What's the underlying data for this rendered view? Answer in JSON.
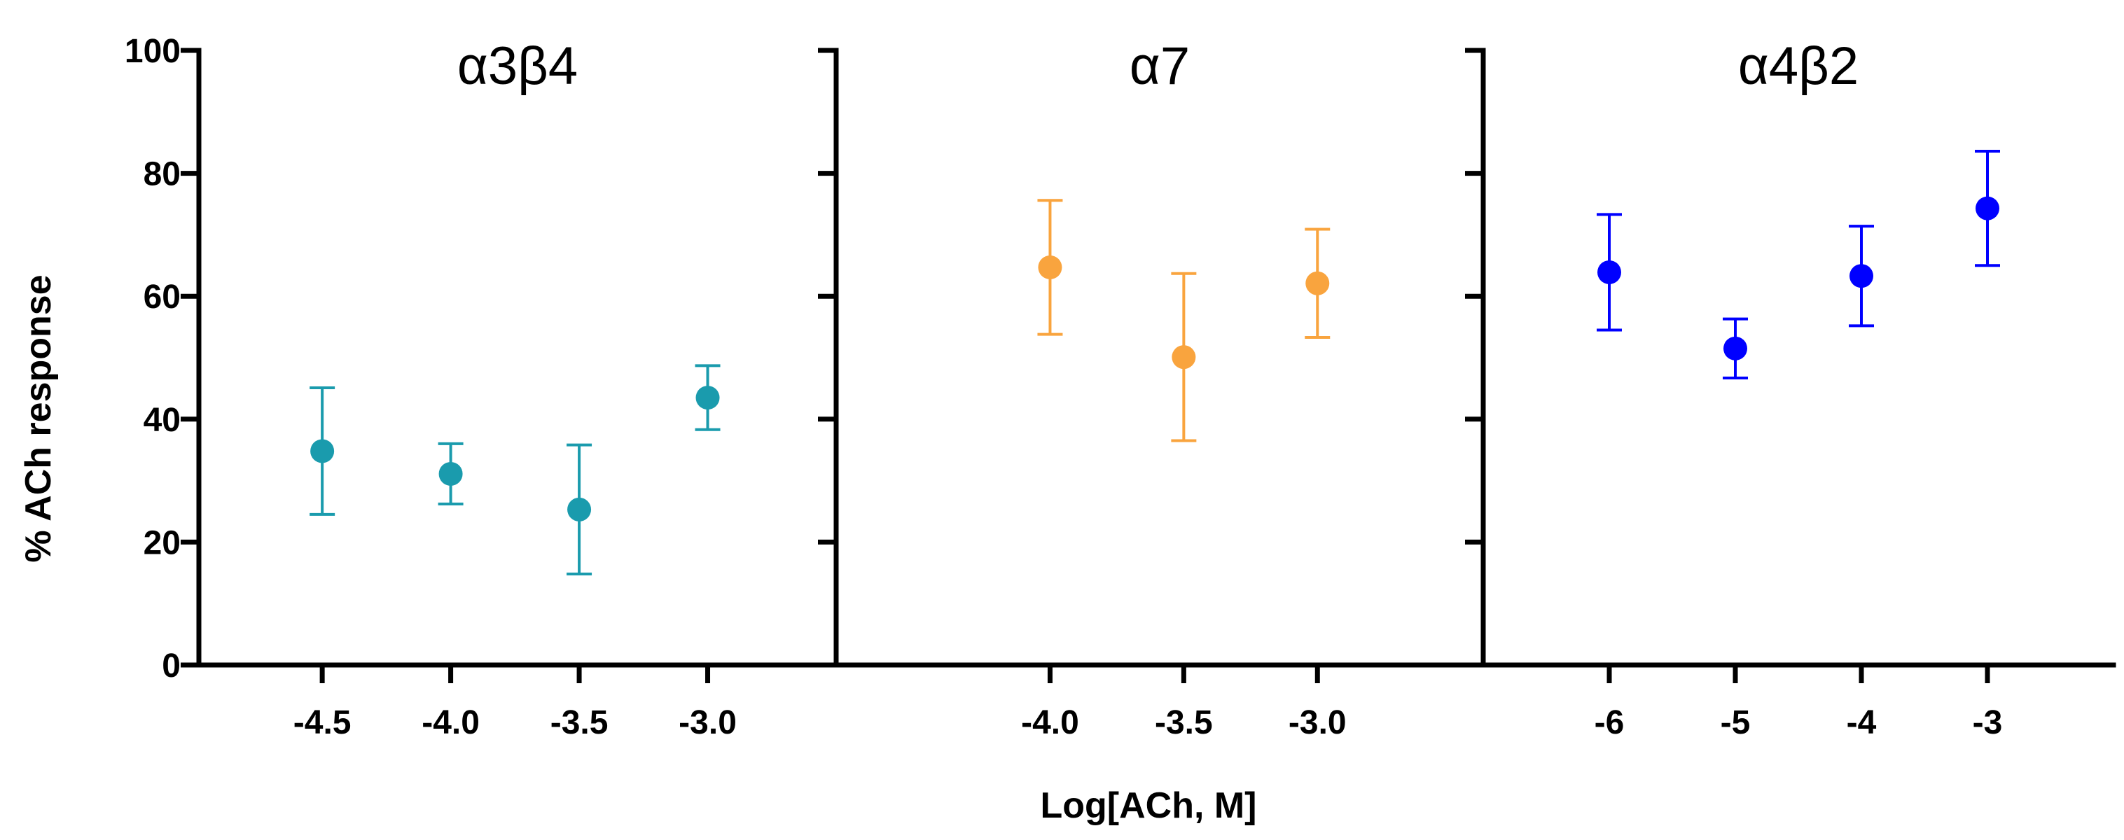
{
  "chart_data": {
    "type": "scatter",
    "ylabel": "% ACh response",
    "xlabel": "Log[ACh, M]",
    "ylim": [
      0,
      100
    ],
    "yticks": [
      0,
      20,
      40,
      60,
      80,
      100
    ],
    "grid": false,
    "panels": [
      {
        "title": "α3β4",
        "color": "#1a9bad",
        "xlim": [
          -4.98,
          -2.5
        ],
        "xticks": [
          -4.5,
          -4.0,
          -3.5,
          -3.0
        ],
        "xtick_labels": [
          "-4.5",
          "-4.0",
          "-3.5",
          "-3.0"
        ],
        "points": [
          {
            "x": -4.5,
            "y": 34.8,
            "err": 10.3
          },
          {
            "x": -4.0,
            "y": 31.1,
            "err": 4.9
          },
          {
            "x": -3.5,
            "y": 25.3,
            "err": 10.5
          },
          {
            "x": -3.0,
            "y": 43.5,
            "err": 5.2
          }
        ]
      },
      {
        "title": "α7",
        "color": "#f9a43e",
        "xlim": [
          -4.8,
          -2.38
        ],
        "xticks": [
          -4.0,
          -3.5,
          -3.0
        ],
        "xtick_labels": [
          "-4.0",
          "-3.5",
          "-3.0"
        ],
        "points": [
          {
            "x": -4.0,
            "y": 64.7,
            "err": 10.9
          },
          {
            "x": -3.5,
            "y": 50.1,
            "err": 13.6
          },
          {
            "x": -3.0,
            "y": 62.1,
            "err": 8.8
          }
        ]
      },
      {
        "title": "α4β2",
        "color": "#0000ff",
        "xlim": [
          -7.0,
          -2.0
        ],
        "xticks": [
          -6,
          -5,
          -4,
          -3
        ],
        "xtick_labels": [
          "-6",
          "-5",
          "-4",
          "-3"
        ],
        "points": [
          {
            "x": -6,
            "y": 63.9,
            "err": 9.4
          },
          {
            "x": -5,
            "y": 51.5,
            "err": 4.8
          },
          {
            "x": -4,
            "y": 63.3,
            "err": 8.1
          },
          {
            "x": -3,
            "y": 74.3,
            "err": 9.3
          }
        ]
      }
    ]
  }
}
